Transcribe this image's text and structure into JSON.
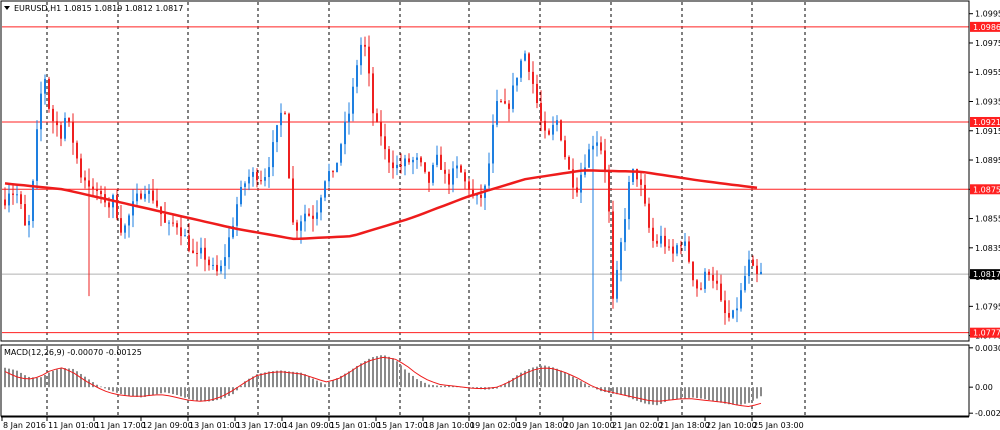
{
  "header": {
    "symbol_label": "EURUSD,H1",
    "ohlc_label": "1.0815 1.0819 1.0812 1.0817"
  },
  "macd": {
    "label": "MACD(12,26,9) -0.00070 -0.00125"
  },
  "colors": {
    "bull": "#1e7fe0",
    "bear": "#ee2020",
    "ma": "#ee1c1c",
    "level_line": "#ff2020",
    "current_price_line": "#b0b0b0",
    "histogram": "#8a8a8a",
    "signal": "#ee1c1c",
    "grid": "#000000"
  },
  "chart_data": {
    "type": "candlestick",
    "price_axis": {
      "range": [
        1.0772,
        1.1003
      ],
      "ticks": [
        "1.0995",
        "1.0975",
        "1.0955",
        "1.0935",
        "1.0915",
        "1.0895",
        "1.0875",
        "1.0855",
        "1.0835",
        "1.0815",
        "1.0795",
        "1.0775"
      ]
    },
    "levels": [
      "1.0986",
      "1.0921",
      "1.0875",
      "1.0777"
    ],
    "current_price": "1.0817",
    "x_ticks": [
      "8 Jan 2016",
      "11 Jan 01:00",
      "11 Jan 17:00",
      "12 Jan 09:00",
      "13 Jan 01:00",
      "13 Jan 17:00",
      "14 Jan 09:00",
      "15 Jan 01:00",
      "15 Jan 17:00",
      "18 Jan 10:00",
      "19 Jan 02:00",
      "19 Jan 18:00",
      "20 Jan 10:00",
      "21 Jan 02:00",
      "21 Jan 18:00",
      "22 Jan 10:00",
      "25 Jan 03:00"
    ],
    "price_path": [
      1.0868,
      1.0875,
      1.0872,
      1.0871,
      1.0858,
      1.0842,
      1.0862,
      1.0902,
      1.0935,
      1.0955,
      1.0932,
      1.0922,
      1.0918,
      1.0912,
      1.0928,
      1.0912,
      1.0905,
      1.0886,
      1.0883,
      1.0881,
      1.0872,
      1.0874,
      1.0868,
      1.0868,
      1.0863,
      1.087,
      1.0852,
      1.0846,
      1.0853,
      1.0862,
      1.0868,
      1.0872,
      1.0876,
      1.0872,
      1.0869,
      1.0863,
      1.0856,
      1.0848,
      1.085,
      1.0853,
      1.0848,
      1.0843,
      1.0837,
      1.083,
      1.0828,
      1.0832,
      1.0828,
      1.0822,
      1.0819,
      1.0817,
      1.0826,
      1.0838,
      1.085,
      1.0864,
      1.0873,
      1.088,
      1.0884,
      1.0885,
      1.0885,
      1.0882,
      1.0889,
      1.09,
      1.0912,
      1.0925,
      1.0934,
      1.0885,
      1.0848,
      1.085,
      1.0857,
      1.086,
      1.0856,
      1.0858,
      1.0868,
      1.0882,
      1.0887,
      1.0882,
      1.0895,
      1.0908,
      1.092,
      1.093,
      1.095,
      1.097,
      1.0978,
      1.096,
      1.093,
      1.0918,
      1.0913,
      1.09,
      1.0895,
      1.0892,
      1.089,
      1.0892,
      1.0894,
      1.0894,
      1.0895,
      1.0892,
      1.0884,
      1.088,
      1.0889,
      1.0896,
      1.089,
      1.088,
      1.0882,
      1.0889,
      1.0889,
      1.088,
      1.0878,
      1.087,
      1.0868,
      1.087,
      1.0876,
      1.0898,
      1.0925,
      1.0937,
      1.093,
      1.093,
      1.094,
      1.0952,
      1.0962,
      1.0968,
      1.0958,
      1.0945,
      1.093,
      1.0916,
      1.0908,
      1.0912,
      1.0925,
      1.0915,
      1.09,
      1.0888,
      1.088,
      1.0876,
      1.0888,
      1.0896,
      1.0904,
      1.091,
      1.0908,
      1.0895,
      1.0876,
      1.0795,
      1.0815,
      1.0838,
      1.086,
      1.0882,
      1.0888,
      1.0882,
      1.087,
      1.0853,
      1.084,
      1.0838,
      1.0842,
      1.0838,
      1.0832,
      1.083,
      1.0838,
      1.084,
      1.0834,
      1.082,
      1.081,
      1.0805,
      1.0815,
      1.082,
      1.0815,
      1.0808,
      1.0794,
      1.0788,
      1.0786,
      1.079,
      1.08,
      1.081,
      1.0826,
      1.082,
      1.0815,
      1.0817
    ],
    "ma_path": [
      1.0879,
      1.0875,
      1.0866,
      1.0857,
      1.0848,
      1.0841,
      1.0843,
      1.0855,
      1.087,
      1.0882,
      1.0888,
      1.0887,
      1.0881,
      1.0876
    ],
    "macd_axis": {
      "range": [
        -0.00215,
        0.00318
      ],
      "ticks": [
        "0.00304",
        "0.00",
        "-0.00201"
      ]
    },
    "macd_path": [
      0.0015,
      0.0013,
      0.0008,
      0.0007,
      0.0012,
      0.0015,
      0.0014,
      0.0008,
      0.0002,
      -0.0002,
      -0.0005,
      -0.0007,
      -0.0008,
      -0.0006,
      -0.0004,
      -0.0006,
      -0.0009,
      -0.0011,
      -0.0011,
      -0.0009,
      -0.0005,
      0.0005,
      0.001,
      0.0012,
      0.0013,
      0.0012,
      0.0011,
      0.0006,
      0.0002,
      0.0007,
      0.0012,
      0.0018,
      0.0023,
      0.0025,
      0.0022,
      0.0013,
      0.0006,
      0.0002,
      0.0001,
      0.0001,
      0.0,
      -0.0001,
      -0.0002,
      -0.0001,
      0.0005,
      0.0011,
      0.0015,
      0.0017,
      0.0015,
      0.0011,
      0.0006,
      0.0001,
      -0.0003,
      -0.0005,
      -0.0006,
      -0.001,
      -0.0013,
      -0.0014,
      -0.001,
      -0.0009,
      -0.0008,
      -0.0009,
      -0.0011,
      -0.0013,
      -0.0014,
      -0.0012,
      -0.0007
    ],
    "signal_path": [
      0.0012,
      0.0008,
      0.0006,
      0.0008,
      0.0013,
      0.0015,
      0.0011,
      0.0005,
      0.0,
      -0.0004,
      -0.0006,
      -0.0007,
      -0.0007,
      -0.0006,
      -0.0006,
      -0.0008,
      -0.001,
      -0.0011,
      -0.001,
      -0.0007,
      -0.0002,
      0.0004,
      0.0009,
      0.0011,
      0.0012,
      0.0011,
      0.001,
      0.0007,
      0.0004,
      0.0006,
      0.0011,
      0.0017,
      0.0021,
      0.0023,
      0.0022,
      0.0017,
      0.001,
      0.0005,
      0.0002,
      0.0001,
      0.0,
      -0.0001,
      -0.0001,
      0.0,
      0.0004,
      0.0009,
      0.0013,
      0.0015,
      0.0014,
      0.0011,
      0.0007,
      0.0002,
      -0.0002,
      -0.0004,
      -0.0006,
      -0.0008,
      -0.001,
      -0.0011,
      -0.001,
      -0.0009,
      -0.0009,
      -0.001,
      -0.0011,
      -0.0012,
      -0.0014,
      -0.0015,
      -0.00125
    ]
  }
}
